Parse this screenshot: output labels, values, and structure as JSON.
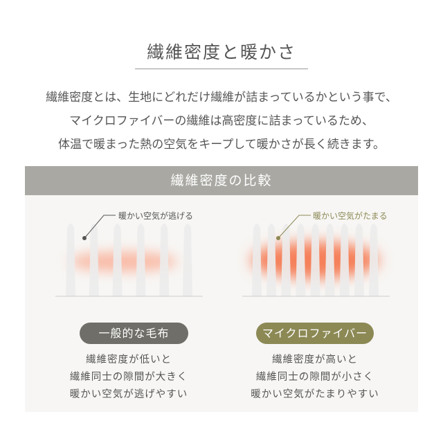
{
  "title": "繊維密度と暖かさ",
  "intro": [
    "繊維密度とは、生地にどれだけ繊維が詰まっているかという事で、",
    "マイクロファイバーの繊維は高密度に詰まっているため、",
    "体温で暖まった熱の空気をキープして暖かさが長く続きます。"
  ],
  "comparison": {
    "header": "繊維密度の比較",
    "left": {
      "note": "暖かい空気が逃げる",
      "label": "一般的な毛布",
      "desc": [
        "繊維密度が低いと",
        "繊維同士の隙間が大きく",
        "暖かい空気が逃げやすい"
      ],
      "color": "#6f6e68",
      "bristles": 6
    },
    "right": {
      "note": "暖かい空気がたまる",
      "label": "マイクロファイバー",
      "desc": [
        "繊維密度が高いと",
        "繊維同士の隙間が小さく",
        "暖かい空気がたまりやすい"
      ],
      "color": "#8c8955",
      "bristles": 9
    }
  }
}
